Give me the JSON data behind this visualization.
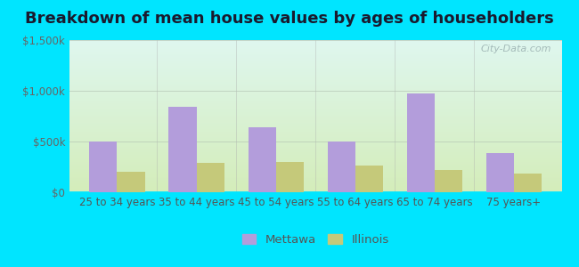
{
  "title": "Breakdown of mean house values by ages of householders",
  "categories": [
    "25 to 34 years",
    "35 to 44 years",
    "45 to 54 years",
    "55 to 64 years",
    "65 to 74 years",
    "75 years+"
  ],
  "mettawa_values": [
    500000,
    840000,
    640000,
    500000,
    975000,
    390000
  ],
  "illinois_values": [
    205000,
    290000,
    295000,
    260000,
    215000,
    185000
  ],
  "mettawa_color": "#b39ddb",
  "illinois_color": "#c5c97a",
  "ylim": [
    0,
    1500000
  ],
  "ytick_labels": [
    "$0",
    "$500k",
    "$1,000k",
    "$1,500k"
  ],
  "ytick_vals": [
    0,
    500000,
    1000000,
    1500000
  ],
  "bar_width": 0.35,
  "background_outer": "#00e5ff",
  "legend_labels": [
    "Mettawa",
    "Illinois"
  ],
  "watermark": "City-Data.com",
  "title_fontsize": 13,
  "axis_fontsize": 8.5,
  "legend_fontsize": 9.5
}
